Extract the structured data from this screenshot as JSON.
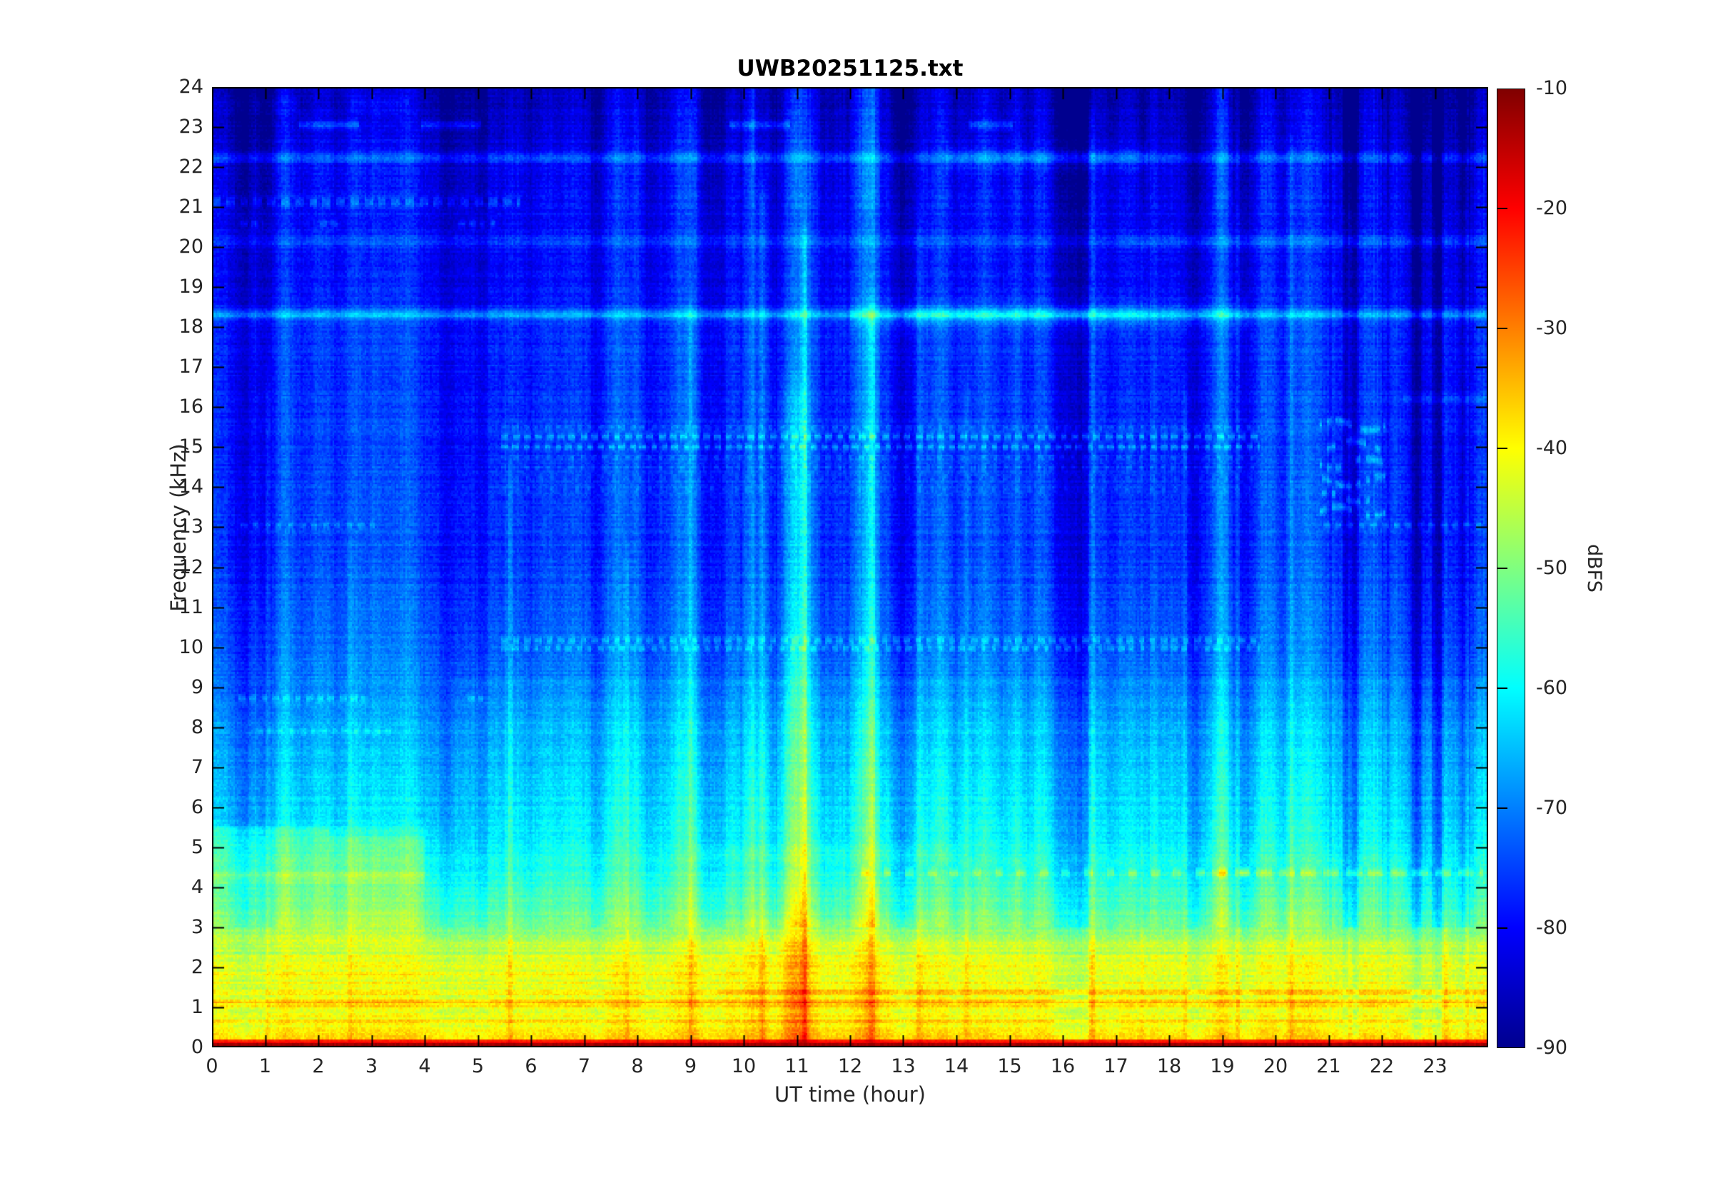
{
  "figure": {
    "background": "#ffffff"
  },
  "chart_data": {
    "type": "heatmap",
    "subtype": "spectrogram",
    "title": "UWB20251125.txt",
    "xlabel": "UT time (hour)",
    "ylabel": "Frequency (kHz)",
    "x_range": [
      0,
      24
    ],
    "y_range": [
      0,
      24
    ],
    "x_ticks": [
      0,
      1,
      2,
      3,
      4,
      5,
      6,
      7,
      8,
      9,
      10,
      11,
      12,
      13,
      14,
      15,
      16,
      17,
      18,
      19,
      20,
      21,
      22,
      23
    ],
    "y_ticks": [
      0,
      1,
      2,
      3,
      4,
      5,
      6,
      7,
      8,
      9,
      10,
      11,
      12,
      13,
      14,
      15,
      16,
      17,
      18,
      19,
      20,
      21,
      22,
      23,
      24
    ],
    "grid": false,
    "legend": null,
    "colorbar": {
      "label": "dBFS",
      "ticks": [
        -10,
        -20,
        -30,
        -40,
        -50,
        -60,
        -70,
        -80,
        -90
      ],
      "clim": [
        -90,
        -10
      ],
      "colormap": "jet",
      "stops": [
        [
          0,
          0,
          0,
          143
        ],
        [
          0.125,
          0,
          0,
          255
        ],
        [
          0.375,
          0,
          255,
          255
        ],
        [
          0.625,
          255,
          255,
          0
        ],
        [
          0.875,
          255,
          0,
          0
        ],
        [
          1,
          128,
          0,
          0
        ]
      ]
    },
    "background_profile_khz_dbfs": [
      [
        0,
        -14
      ],
      [
        0.07,
        -14
      ],
      [
        0.1,
        -26
      ],
      [
        0.18,
        -38
      ],
      [
        0.3,
        -41
      ],
      [
        0.6,
        -41
      ],
      [
        1.2,
        -40
      ],
      [
        1.8,
        -42
      ],
      [
        2.2,
        -43
      ],
      [
        2.6,
        -46
      ],
      [
        3.0,
        -50
      ],
      [
        3.4,
        -53
      ],
      [
        3.8,
        -55
      ],
      [
        4.3,
        -57
      ],
      [
        4.8,
        -59
      ],
      [
        5.3,
        -61
      ],
      [
        5.8,
        -63
      ],
      [
        6.8,
        -65
      ],
      [
        7.8,
        -66.5
      ],
      [
        8.6,
        -69
      ],
      [
        9.4,
        -71
      ],
      [
        10.5,
        -73
      ],
      [
        12,
        -75
      ],
      [
        14,
        -76
      ],
      [
        16,
        -76.5
      ],
      [
        18,
        -77
      ],
      [
        18.8,
        -78.5
      ],
      [
        19.5,
        -79.5
      ],
      [
        21,
        -80
      ],
      [
        22,
        -81
      ],
      [
        22.8,
        -83
      ],
      [
        23.5,
        -84.5
      ],
      [
        24,
        -85.5
      ]
    ],
    "spectral_lines": [
      {
        "f": 18.32,
        "w": 0.1,
        "db": 11,
        "spans": [
          [
            0,
            24
          ]
        ],
        "dash": null
      },
      {
        "f": 18.32,
        "w": 0.28,
        "db": 4,
        "spans": [
          [
            12,
            19.5
          ]
        ],
        "dash": null
      },
      {
        "f": 18.32,
        "w": 0.14,
        "db": 3,
        "spans": [
          [
            13,
            17.6
          ]
        ],
        "dash": null
      },
      {
        "f": 22.25,
        "w": 0.09,
        "db": 9,
        "spans": [
          [
            0,
            24
          ]
        ],
        "dash": null
      },
      {
        "f": 22.25,
        "w": 0.2,
        "db": 4,
        "spans": [
          [
            13.8,
            17.6
          ]
        ],
        "dash": null
      },
      {
        "f": 20.15,
        "w": 0.13,
        "db": 4,
        "spans": [
          [
            0,
            24
          ]
        ],
        "dash": null
      },
      {
        "f": 20.15,
        "w": 0.13,
        "db": 2,
        "spans": [
          [
            17,
            24
          ]
        ],
        "dash": null
      },
      {
        "f": 23.08,
        "w": 0.08,
        "db": 8,
        "spans": [
          [
            1.65,
            2.75
          ],
          [
            3.95,
            5.05
          ],
          [
            9.75,
            10.85
          ],
          [
            14.25,
            15.05
          ]
        ],
        "dash": null
      },
      {
        "f": 23.6,
        "w": 0.12,
        "db": 3,
        "spans": [
          [
            0,
            1.6
          ],
          [
            2.6,
            3.7
          ]
        ],
        "dash": null
      },
      {
        "f": 21.15,
        "w": 0.08,
        "db": 7,
        "spans": [
          [
            0,
            5.8
          ]
        ],
        "dash": [
          0.16,
          0.1
        ]
      },
      {
        "f": 20.6,
        "w": 0.07,
        "db": 6,
        "spans": [
          [
            0.55,
            0.95
          ],
          [
            2.05,
            2.35
          ],
          [
            4.65,
            5.35
          ]
        ],
        "dash": [
          0.12,
          0.07
        ]
      },
      {
        "f": 15.27,
        "w": 0.06,
        "db": 9,
        "spans": [
          [
            5.45,
            19.7
          ]
        ],
        "dash": [
          0.13,
          0.08
        ]
      },
      {
        "f": 15.02,
        "w": 0.06,
        "db": 8,
        "spans": [
          [
            5.45,
            19.7
          ]
        ],
        "dash": [
          0.11,
          0.09
        ]
      },
      {
        "f": 15.5,
        "w": 0.05,
        "db": 4,
        "spans": [
          [
            5.45,
            19.7
          ]
        ],
        "dash": [
          0.1,
          0.1
        ]
      },
      {
        "f": 14.75,
        "w": 0.05,
        "db": 4,
        "spans": [
          [
            5.45,
            19.7
          ]
        ],
        "dash": [
          0.09,
          0.12
        ]
      },
      {
        "f": 14.5,
        "w": 0.05,
        "db": 3.5,
        "spans": [
          [
            5.45,
            19.7
          ]
        ],
        "dash": [
          0.08,
          0.13
        ]
      },
      {
        "f": 14.22,
        "w": 0.05,
        "db": 3,
        "spans": [
          [
            5.45,
            19.7
          ]
        ],
        "dash": [
          0.08,
          0.15
        ]
      },
      {
        "f": 13.95,
        "w": 0.05,
        "db": 3,
        "spans": [
          [
            5.45,
            19.7
          ]
        ],
        "dash": [
          0.07,
          0.16
        ]
      },
      {
        "f": 10.16,
        "w": 0.06,
        "db": 7,
        "spans": [
          [
            5.45,
            19.7
          ]
        ],
        "dash": [
          0.12,
          0.09
        ]
      },
      {
        "f": 9.96,
        "w": 0.06,
        "db": 6,
        "spans": [
          [
            5.45,
            19.7
          ]
        ],
        "dash": [
          0.1,
          0.1
        ]
      },
      {
        "f": 13.05,
        "w": 0.06,
        "db": 5,
        "spans": [
          [
            0.55,
            3.2
          ]
        ],
        "dash": [
          0.1,
          0.12
        ]
      },
      {
        "f": 13.05,
        "w": 0.06,
        "db": 6,
        "spans": [
          [
            20.9,
            24
          ]
        ],
        "dash": [
          0.12,
          0.1
        ]
      },
      {
        "f": 8.72,
        "w": 0.06,
        "db": 6,
        "spans": [
          [
            0.5,
            2.85
          ],
          [
            4.8,
            5.1
          ]
        ],
        "dash": [
          0.13,
          0.08
        ]
      },
      {
        "f": 7.9,
        "w": 0.06,
        "db": 4,
        "spans": [
          [
            0.85,
            3.35
          ]
        ],
        "dash": [
          0.1,
          0.1
        ]
      },
      {
        "f": 16.2,
        "w": 0.09,
        "db": 4,
        "spans": [
          [
            22.4,
            24
          ]
        ],
        "dash": null
      },
      {
        "f": 5.38,
        "w": 0.09,
        "db": 6,
        "spans": [
          [
            0,
            2.2
          ]
        ],
        "dash": null
      },
      {
        "f": 5.38,
        "w": 0.09,
        "db": 3,
        "spans": [
          [
            2.2,
            4
          ]
        ],
        "dash": null
      },
      {
        "f": 4.35,
        "w": 0.08,
        "db": 7,
        "spans": [
          [
            12.2,
            19.5
          ]
        ],
        "dash": [
          0.16,
          0.26
        ]
      },
      {
        "f": 4.35,
        "w": 0.08,
        "db": 7,
        "spans": [
          [
            18.8,
            23.9
          ]
        ],
        "dash": [
          0.3,
          0.12
        ]
      },
      {
        "f": 4.22,
        "w": 0.12,
        "db": 4,
        "spans": [
          [
            0,
            4
          ]
        ],
        "dash": null
      },
      {
        "f": 4.85,
        "w": 0.1,
        "db": 2,
        "spans": [
          [
            9,
            14
          ]
        ],
        "dash": null
      },
      {
        "f": 1.08,
        "w": 0.06,
        "db": 5,
        "spans": [
          [
            0,
            24
          ]
        ],
        "dash": null
      },
      {
        "f": 0.62,
        "w": 0.05,
        "db": 4,
        "spans": [
          [
            0,
            24
          ]
        ],
        "dash": null
      },
      {
        "f": 1.38,
        "w": 0.05,
        "db": 4,
        "spans": [
          [
            9.5,
            24
          ]
        ],
        "dash": null
      },
      {
        "f": 1.78,
        "w": 0.05,
        "db": 3,
        "spans": [
          [
            0,
            10
          ]
        ],
        "dash": null
      },
      {
        "f": 2.08,
        "w": 0.05,
        "db": 3,
        "spans": [
          [
            0,
            24
          ]
        ],
        "dash": null
      },
      {
        "f": 0.3,
        "w": 0.06,
        "db": 3,
        "spans": [
          [
            0,
            24
          ]
        ],
        "dash": null
      }
    ],
    "event_columns": [
      {
        "h": 1.05,
        "w": 0.05,
        "db": 5,
        "fmax": 16
      },
      {
        "h": 2.6,
        "w": 0.04,
        "db": 4,
        "fmax": 12
      },
      {
        "h": 5.6,
        "w": 0.05,
        "db": 6,
        "fmax": 14
      },
      {
        "h": 7.8,
        "w": 0.05,
        "db": 5,
        "fmax": 12
      },
      {
        "h": 9.0,
        "w": 0.05,
        "db": 5,
        "fmax": 18
      },
      {
        "h": 10.35,
        "w": 0.07,
        "db": 8,
        "fmax": 21
      },
      {
        "h": 10.95,
        "w": 0.28,
        "db": 6,
        "fmax": 16
      },
      {
        "h": 11.15,
        "w": 0.06,
        "db": 10,
        "fmax": 20
      },
      {
        "h": 12.4,
        "w": 0.07,
        "db": 6,
        "fmax": 18
      },
      {
        "h": 13.3,
        "w": 0.05,
        "db": 5,
        "fmax": 20
      },
      {
        "h": 14.2,
        "w": 0.06,
        "db": 5,
        "fmax": 16
      },
      {
        "h": 16.55,
        "w": 0.06,
        "db": 8,
        "fmax": 23
      },
      {
        "h": 17.5,
        "w": 0.05,
        "db": 5,
        "fmax": 20
      },
      {
        "h": 18.3,
        "w": 0.05,
        "db": 5,
        "fmax": 16
      },
      {
        "h": 19.3,
        "w": 0.05,
        "db": 7,
        "fmax": 23.5
      },
      {
        "h": 20.3,
        "w": 0.06,
        "db": 6,
        "fmax": 22
      },
      {
        "h": 21.4,
        "w": 0.06,
        "db": 8,
        "fmax": 24
      },
      {
        "h": 23.2,
        "w": 0.06,
        "db": 9,
        "fmax": 24
      },
      {
        "h": 23.6,
        "w": 0.05,
        "db": 7,
        "fmax": 24
      }
    ],
    "cluster": {
      "t0": 20.85,
      "t1": 22.05,
      "freqs": [
        15.55,
        15.05,
        14.6,
        14.15,
        13.75,
        13.4
      ],
      "db": 8,
      "w": 0.07,
      "dash_h": 0.09
    },
    "regions": [
      {
        "type": "block",
        "t": [
          0,
          4
        ],
        "f": [
          2.6,
          5.25
        ],
        "db": 3
      },
      {
        "type": "block",
        "t": [
          0,
          4
        ],
        "f": [
          4.2,
          5.2
        ],
        "db": 2
      },
      {
        "type": "block",
        "t": [
          4.5,
          24
        ],
        "f": [
          5.4,
          9.2
        ],
        "db": 1.5
      },
      {
        "type": "block",
        "t": [
          9,
          13.5
        ],
        "f": [
          0,
          3.2
        ],
        "db": 1.5
      },
      {
        "type": "streak_zone",
        "t": [
          20.8,
          24
        ],
        "amp": 0.8
      },
      {
        "type": "streak_zone",
        "t": [
          9.8,
          12.6
        ],
        "amp": 0.4
      }
    ],
    "noise": {
      "seed": 1337,
      "pixel_db": 4,
      "low_freq_pixel_db": 5,
      "row_db": 2.6,
      "row_low_mult": 2.0,
      "col_slow_db": 3.2,
      "col_fast_db": 3.4,
      "dc_db": -14,
      "dc_khz": 0.09
    },
    "resolution": {
      "time_bins": 720,
      "freq_bins": 481,
      "khz_per_bin": 0.05
    }
  }
}
